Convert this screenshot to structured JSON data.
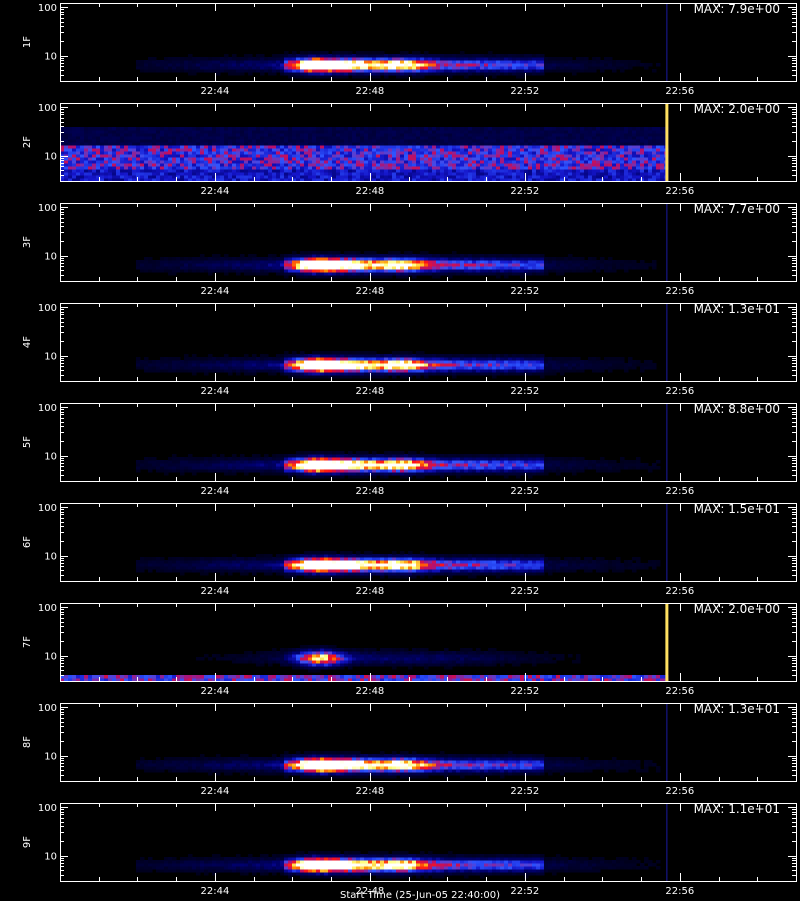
{
  "chart_data": {
    "type": "heatmap",
    "x_axis": {
      "range": [
        "22:40:00",
        "22:59:00"
      ],
      "ticks": [
        "22:44",
        "22:48",
        "22:52",
        "22:56"
      ]
    },
    "y_axis": {
      "scale": "log",
      "range": [
        3,
        120
      ],
      "ticks": [
        {
          "value": 10,
          "label": "10"
        },
        {
          "value": 100,
          "label": "100"
        }
      ]
    },
    "colormap": [
      "#000000",
      "#000033",
      "#00006e",
      "#1414c8",
      "#2d55ff",
      "#b4106e",
      "#ff1414",
      "#ff9600",
      "#ffff78",
      "#ffffff"
    ],
    "data_end_time": "22:55:40",
    "footer_text": "Start Time (25-Jun-05 22:40:00)",
    "panels": [
      {
        "label": "1F",
        "max_label": "MAX: 7.9e+00",
        "max_value": 7.9,
        "pattern": "event"
      },
      {
        "label": "2F",
        "max_label": "MAX: 2.0e+00",
        "max_value": 2.0,
        "pattern": "background-high"
      },
      {
        "label": "3F",
        "max_label": "MAX: 7.7e+00",
        "max_value": 7.7,
        "pattern": "event"
      },
      {
        "label": "4F",
        "max_label": "MAX: 1.3e+01",
        "max_value": 13,
        "pattern": "event"
      },
      {
        "label": "5F",
        "max_label": "MAX: 8.8e+00",
        "max_value": 8.8,
        "pattern": "event"
      },
      {
        "label": "6F",
        "max_label": "MAX: 1.5e+01",
        "max_value": 15,
        "pattern": "event"
      },
      {
        "label": "7F",
        "max_label": "MAX: 2.0e+00",
        "max_value": 2.0,
        "pattern": "background-low"
      },
      {
        "label": "8F",
        "max_label": "MAX: 1.3e+01",
        "max_value": 13,
        "pattern": "event"
      },
      {
        "label": "9F",
        "max_label": "MAX: 1.1e+01",
        "max_value": 11,
        "pattern": "event"
      }
    ]
  }
}
